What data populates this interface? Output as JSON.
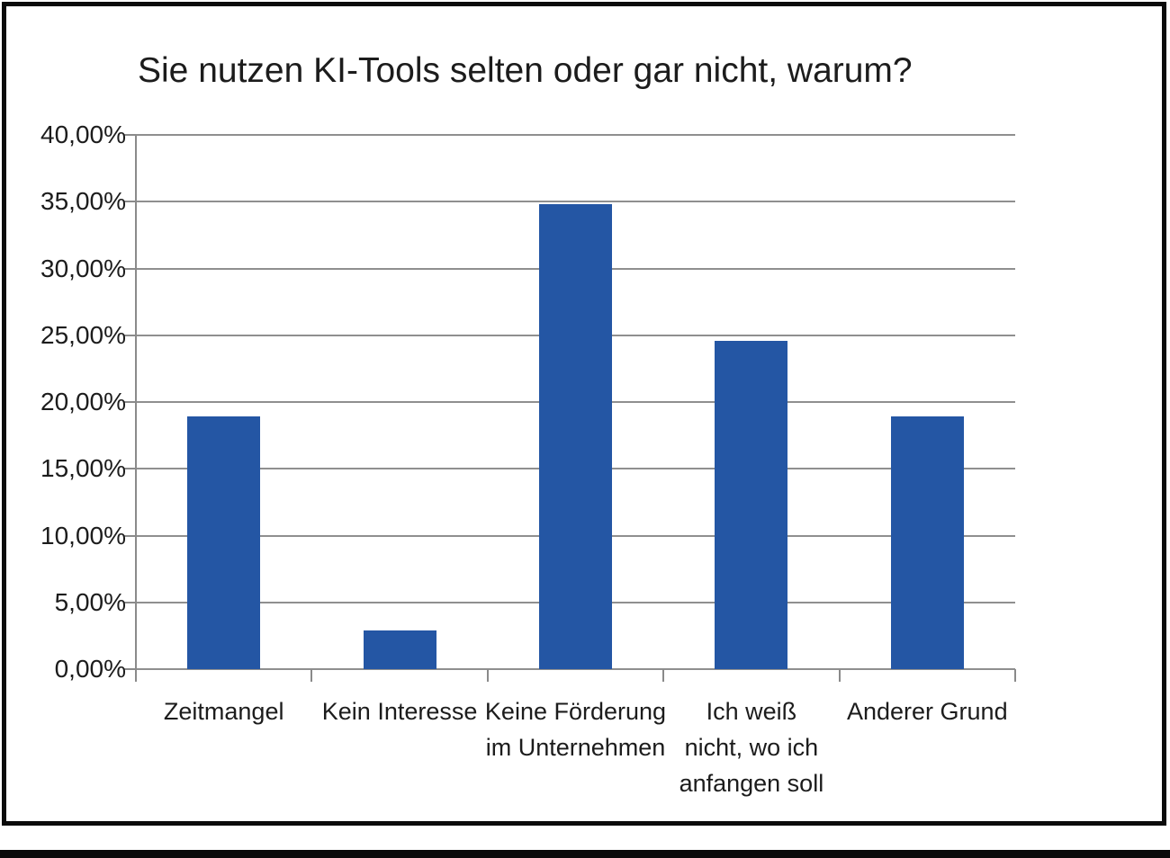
{
  "chart_data": {
    "type": "bar",
    "title": "Sie nutzen KI-Tools selten oder gar nicht, warum?",
    "categories": [
      "Zeitmangel",
      "Kein Interesse",
      "Keine Förderung\nim Unternehmen",
      "Ich weiß\nnicht, wo ich\nanfangen soll",
      "Anderer Grund"
    ],
    "values": [
      18.9,
      2.9,
      34.8,
      24.6,
      18.9
    ],
    "xlabel": "",
    "ylabel": "",
    "ylim": [
      0,
      40
    ],
    "ytick_step": 5,
    "ytick_labels": [
      "0,00%",
      "5,00%",
      "10,00%",
      "15,00%",
      "20,00%",
      "25,00%",
      "30,00%",
      "35,00%",
      "40,00%"
    ],
    "grid": true,
    "legend_position": "none",
    "colors": {
      "bar": "#2456a4",
      "grid": "#8f8f8f",
      "axis": "#8a8a8a",
      "text": "#1c1c1c",
      "frame_border": "#0b0b0b",
      "background": "#ffffff"
    }
  }
}
